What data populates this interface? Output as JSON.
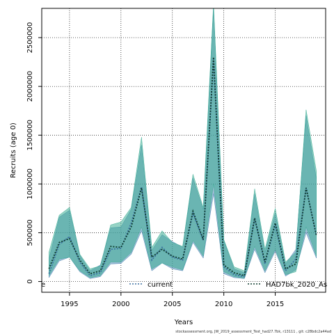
{
  "chart_data": {
    "type": "area",
    "xlabel": "Years",
    "ylabel": "Recruits (age 0)",
    "xlim": [
      1992.3,
      1019.9
    ],
    "ylim": [
      -110000,
      2800000
    ],
    "x_ticks": [
      1995,
      2000,
      2005,
      2010,
      2015
    ],
    "y_ticks": [
      0,
      500000,
      1000000,
      1500000,
      2000000,
      2500000
    ],
    "grid": true,
    "grid_style": "dotted",
    "legend_placement": "bottom",
    "years": [
      1993,
      1994,
      1995,
      1996,
      1997,
      1998,
      1999,
      2000,
      2001,
      2002,
      2003,
      2004,
      2005,
      2006,
      2007,
      2008,
      2009,
      2010,
      2011,
      2012,
      2013,
      2014,
      2015,
      2016,
      2017,
      2018,
      2019
    ],
    "series": [
      {
        "name": "current",
        "color": "#3a6fa0",
        "fill": "#4f86b4",
        "values": [
          80000,
          380000,
          460000,
          200000,
          60000,
          90000,
          330000,
          340000,
          600000,
          970000,
          220000,
          350000,
          250000,
          220000,
          700000,
          420000,
          2280000,
          150000,
          70000,
          50000,
          650000,
          180000,
          580000,
          110000,
          230000,
          960000,
          470000
        ],
        "lower": [
          40000,
          210000,
          250000,
          100000,
          30000,
          50000,
          180000,
          185000,
          280000,
          520000,
          110000,
          190000,
          130000,
          110000,
          400000,
          240000,
          900000,
          80000,
          40000,
          30000,
          330000,
          90000,
          310000,
          55000,
          120000,
          500000,
          240000
        ],
        "upper": [
          230000,
          660000,
          730000,
          270000,
          110000,
          170000,
          550000,
          560000,
          740000,
          1400000,
          320000,
          480000,
          410000,
          350000,
          1060000,
          740000,
          2800000,
          420000,
          130000,
          90000,
          900000,
          300000,
          700000,
          180000,
          330000,
          1700000,
          1050000
        ]
      },
      {
        "name": "HAD7bk_2020_As",
        "color": "#0d3b2e",
        "fill": "#3fae95",
        "values": [
          130000,
          400000,
          440000,
          220000,
          80000,
          110000,
          360000,
          350000,
          560000,
          960000,
          250000,
          330000,
          260000,
          230000,
          720000,
          430000,
          2300000,
          170000,
          90000,
          60000,
          650000,
          200000,
          600000,
          130000,
          180000,
          960000,
          470000
        ],
        "lower": [
          60000,
          230000,
          250000,
          110000,
          40000,
          60000,
          200000,
          200000,
          300000,
          560000,
          130000,
          190000,
          150000,
          120000,
          420000,
          260000,
          1000000,
          100000,
          50000,
          35000,
          360000,
          110000,
          330000,
          70000,
          100000,
          560000,
          260000
        ],
        "upper": [
          300000,
          680000,
          760000,
          280000,
          130000,
          160000,
          580000,
          610000,
          760000,
          1480000,
          350000,
          520000,
          400000,
          360000,
          1100000,
          760000,
          2850000,
          430000,
          150000,
          110000,
          950000,
          330000,
          750000,
          200000,
          300000,
          1760000,
          1130000
        ]
      }
    ]
  },
  "legend": {
    "left_fragment": "e",
    "items": [
      {
        "label": "current"
      },
      {
        "label": "HAD7bk_2020_As"
      }
    ]
  },
  "footnote": "stockassessment.org, JW_2019_assessment_Test_had27.7bk, r13111 , git: c28bdc2a44ad"
}
